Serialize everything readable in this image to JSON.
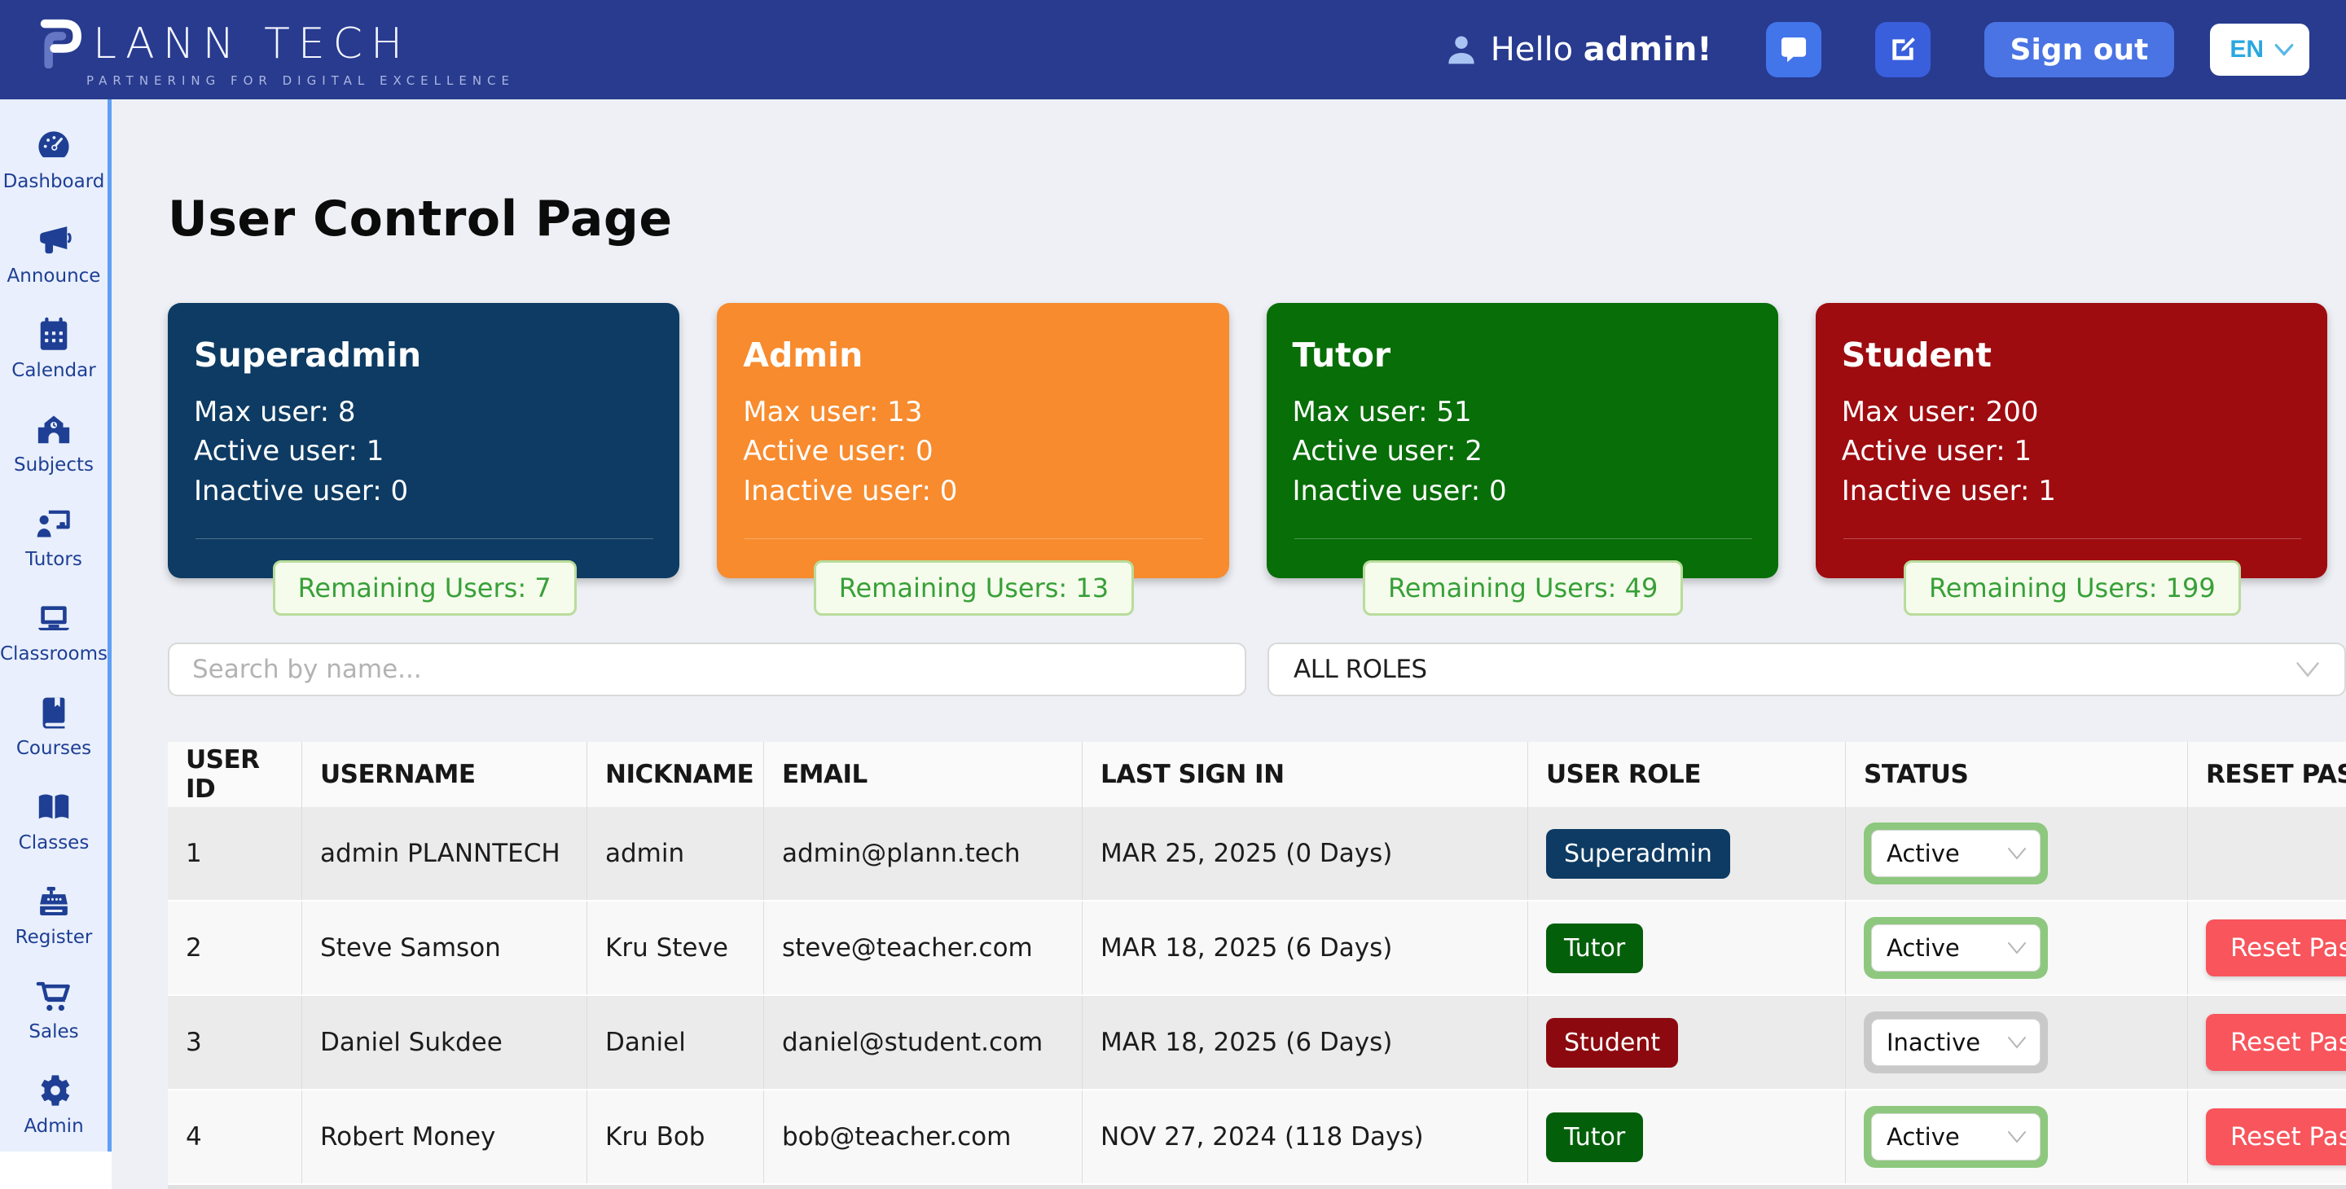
{
  "navbar": {
    "logo_text": "LANN TECH",
    "brand": "PLANN TECH",
    "tagline": "PARTNERING FOR DIGITAL EXCELLENCE",
    "greeting": "Hello",
    "username": "admin!",
    "signout_label": "Sign out",
    "language": "EN",
    "navbar_color": "#283b8f"
  },
  "sidebar": {
    "items": [
      {
        "label": "Dashboard",
        "icon": "gauge-icon"
      },
      {
        "label": "Announce",
        "icon": "megaphone-icon"
      },
      {
        "label": "Calendar",
        "icon": "calendar-icon"
      },
      {
        "label": "Subjects",
        "icon": "school-icon"
      },
      {
        "label": "Tutors",
        "icon": "chalkboard-teacher-icon"
      },
      {
        "label": "Classrooms",
        "icon": "laptop-icon"
      },
      {
        "label": "Courses",
        "icon": "book-icon"
      },
      {
        "label": "Classes",
        "icon": "open-book-icon"
      },
      {
        "label": "Register",
        "icon": "cash-register-icon"
      },
      {
        "label": "Sales",
        "icon": "cart-icon"
      },
      {
        "label": "Admin",
        "icon": "gear-icon"
      }
    ]
  },
  "page": {
    "title": "User Control Page"
  },
  "cards": [
    {
      "title": "Superadmin",
      "color": "#0d3b63",
      "lines": [
        "Max user: 8",
        "Active user: 1",
        "Inactive user: 0"
      ],
      "remaining": "Remaining Users: 7"
    },
    {
      "title": "Admin",
      "color": "#f78b2e",
      "lines": [
        "Max user: 13",
        "Active user: 0",
        "Inactive user: 0"
      ],
      "remaining": "Remaining Users: 13"
    },
    {
      "title": "Tutor",
      "color": "#086e08",
      "lines": [
        "Max user: 51",
        "Active user: 2",
        "Inactive user: 0"
      ],
      "remaining": "Remaining Users: 49"
    },
    {
      "title": "Student",
      "color": "#9e0c10",
      "lines": [
        "Max user: 200",
        "Active user: 1",
        "Inactive user: 1"
      ],
      "remaining": "Remaining Users: 199"
    }
  ],
  "filters": {
    "search_placeholder": "Search by name...",
    "role_filter_value": "ALL ROLES"
  },
  "table": {
    "columns": [
      "USER ID",
      "USERNAME",
      "NICKNAME",
      "EMAIL",
      "LAST SIGN IN",
      "USER ROLE",
      "STATUS",
      "RESET PASSWORD"
    ],
    "reset_label": "Reset Password",
    "rows": [
      {
        "id": "1",
        "username": "admin PLANNTECH",
        "nickname": "admin",
        "email": "admin@plann.tech",
        "last_sign_in": "MAR 25, 2025 (0 Days)",
        "role": "Superadmin",
        "role_color": "#0d3b63",
        "status": "Active",
        "has_reset": false
      },
      {
        "id": "2",
        "username": "Steve Samson",
        "nickname": "Kru Steve",
        "email": "steve@teacher.com",
        "last_sign_in": "MAR 18, 2025 (6 Days)",
        "role": "Tutor",
        "role_color": "#045f0a",
        "status": "Active",
        "has_reset": true
      },
      {
        "id": "3",
        "username": "Daniel Sukdee",
        "nickname": "Daniel",
        "email": "daniel@student.com",
        "last_sign_in": "MAR 18, 2025 (6 Days)",
        "role": "Student",
        "role_color": "#8c0a0f",
        "status": "Inactive",
        "has_reset": true
      },
      {
        "id": "4",
        "username": "Robert Money",
        "nickname": "Kru Bob",
        "email": "bob@teacher.com",
        "last_sign_in": "NOV 27, 2024 (118 Days)",
        "role": "Tutor",
        "role_color": "#045f0a",
        "status": "Active",
        "has_reset": true
      }
    ]
  },
  "colors": {
    "status_active_frame": "#8dc87e",
    "status_inactive_frame": "#c9c9c9",
    "reset_button": "#f8555c",
    "remaining_pill_text": "#38a038",
    "sidebar_accent": "#5f9ff6"
  }
}
